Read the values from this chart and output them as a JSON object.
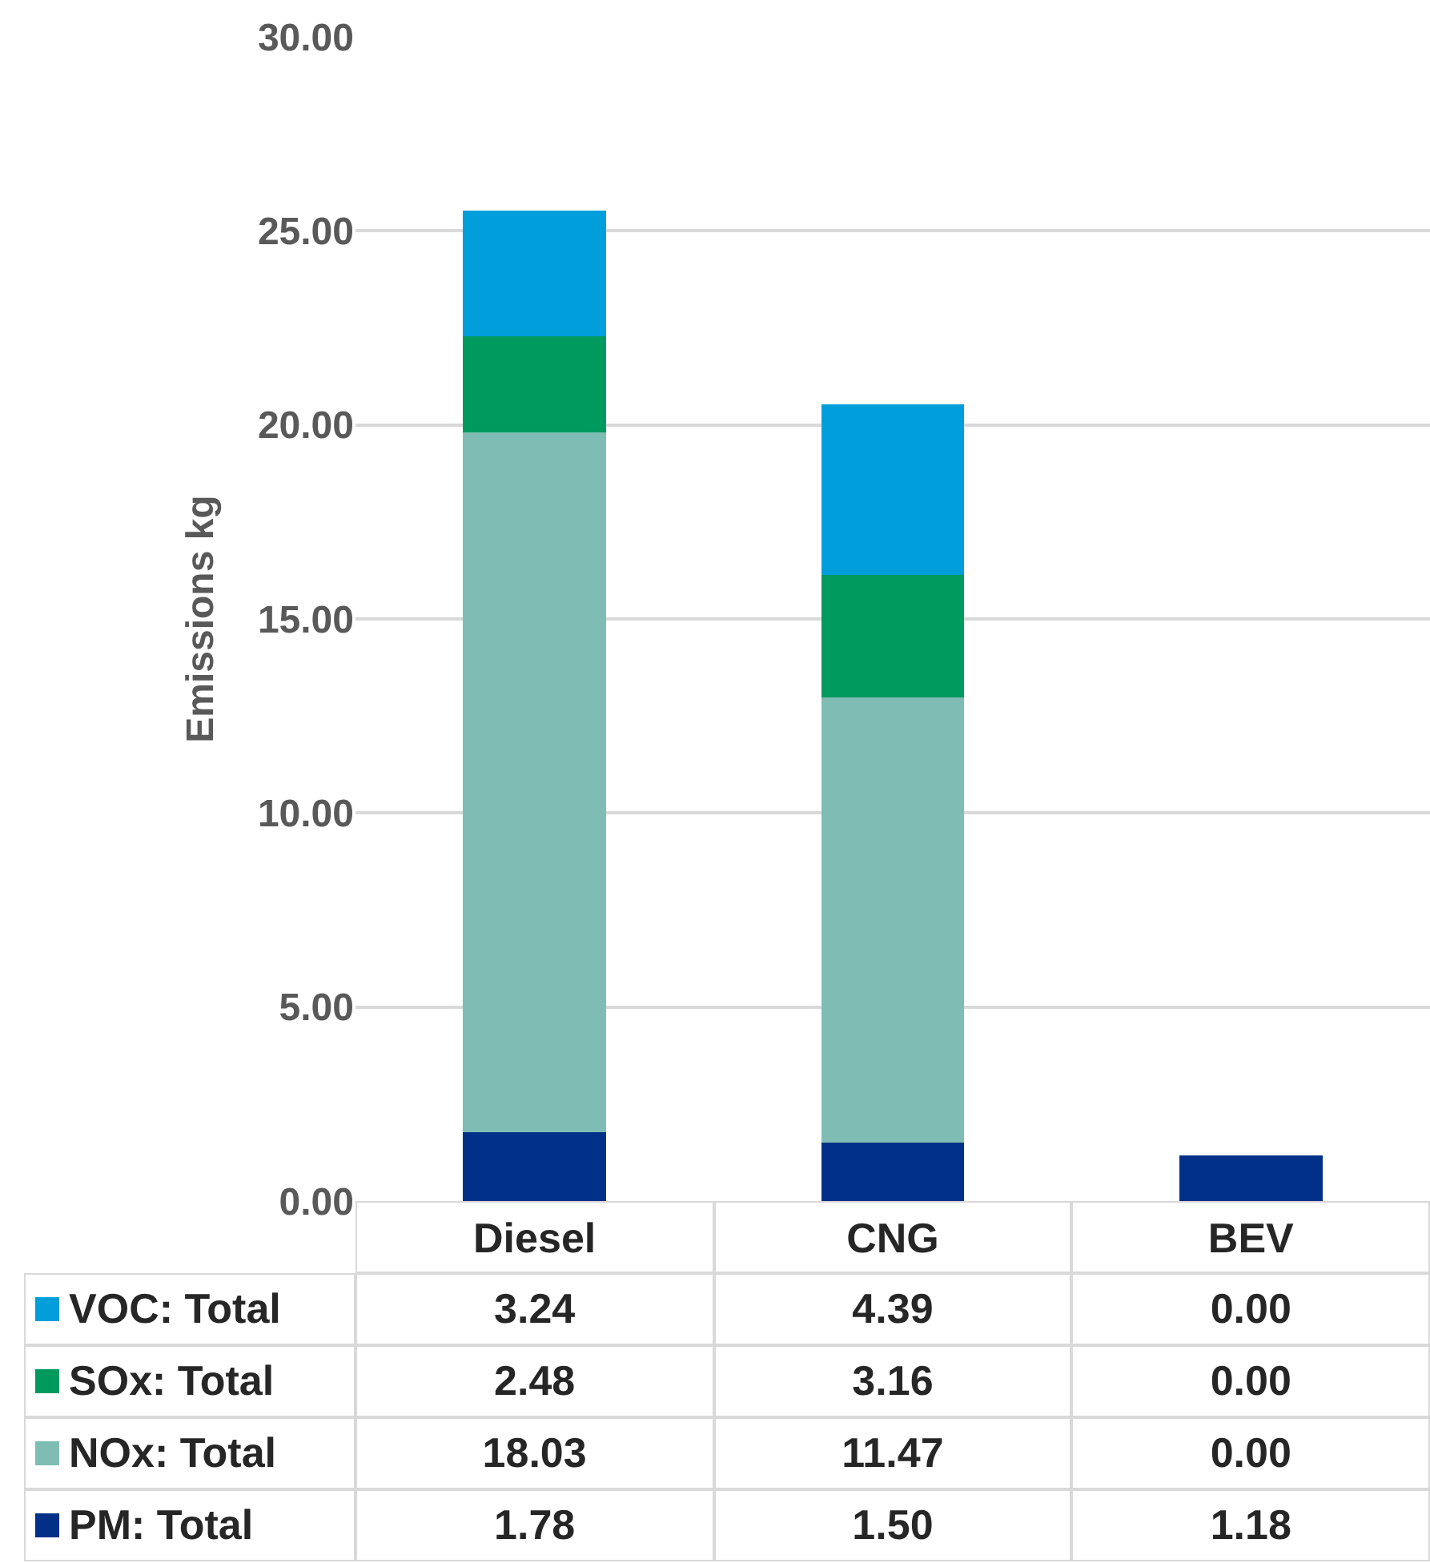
{
  "chart_data": {
    "type": "bar",
    "stacked": true,
    "ylabel": "Emissions kg",
    "categories": [
      "Diesel",
      "CNG",
      "BEV"
    ],
    "series": [
      {
        "name": "PM: Total",
        "color": "#003087",
        "values": [
          1.78,
          1.5,
          1.18
        ],
        "value_labels": [
          "1.78",
          "1.50",
          "1.18"
        ]
      },
      {
        "name": "NOx: Total",
        "color": "#7fbcb3",
        "values": [
          18.03,
          11.47,
          0
        ],
        "value_labels": [
          "18.03",
          "11.47",
          "0.00"
        ]
      },
      {
        "name": "SOx: Total",
        "color": "#009a5e",
        "values": [
          2.48,
          3.16,
          0
        ],
        "value_labels": [
          "2.48",
          "3.16",
          "0.00"
        ]
      },
      {
        "name": "VOC: Total",
        "color": "#009edb",
        "values": [
          3.24,
          4.39,
          0
        ],
        "value_labels": [
          "3.24",
          "4.39",
          "0.00"
        ]
      }
    ],
    "ylim": [
      0,
      30
    ],
    "yticks": [
      {
        "value": 0,
        "label": "0.00"
      },
      {
        "value": 5,
        "label": "5.00"
      },
      {
        "value": 10,
        "label": "10.00"
      },
      {
        "value": 15,
        "label": "15.00"
      },
      {
        "value": 20,
        "label": "20.00"
      },
      {
        "value": 25,
        "label": "25.00"
      },
      {
        "value": 30,
        "label": "30.00"
      }
    ],
    "grid": "y",
    "legend": "bottom"
  }
}
